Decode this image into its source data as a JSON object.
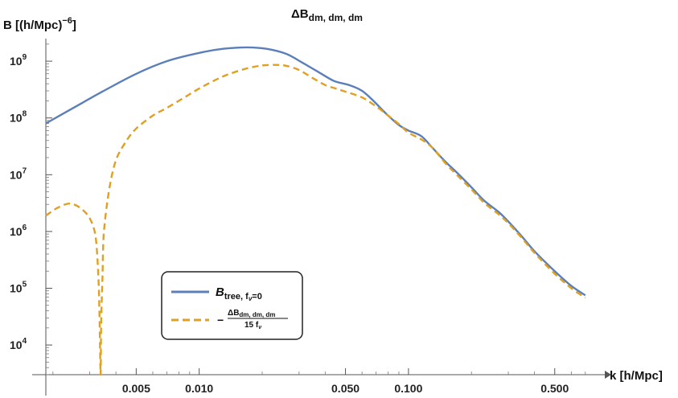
{
  "chart_data": {
    "type": "line",
    "title": "ΔB",
    "title_subscript": "dm, dm, dm",
    "ylabel": "B [(h/Mpc)",
    "ylabel_exponent": "−6",
    "ylabel_suffix": "]",
    "xlabel": "k [h/Mpc]",
    "x_scale": "log",
    "y_scale": "log",
    "xlim": [
      0.00185,
      0.78
    ],
    "ylim": [
      3000,
      2500000000
    ],
    "x_ticks": [
      {
        "value": 0.005,
        "label": "0.005"
      },
      {
        "value": 0.01,
        "label": "0.010"
      },
      {
        "value": 0.05,
        "label": "0.050"
      },
      {
        "value": 0.1,
        "label": "0.100"
      },
      {
        "value": 0.5,
        "label": "0.500"
      }
    ],
    "y_ticks": [
      {
        "value": 10000,
        "base": "10",
        "exp": "4"
      },
      {
        "value": 100000,
        "base": "10",
        "exp": "5"
      },
      {
        "value": 1000000,
        "base": "10",
        "exp": "6"
      },
      {
        "value": 10000000,
        "base": "10",
        "exp": "7"
      },
      {
        "value": 100000000,
        "base": "10",
        "exp": "8"
      },
      {
        "value": 1000000000,
        "base": "10",
        "exp": "9"
      }
    ],
    "grid": false,
    "legend_position": "lower-left",
    "series": [
      {
        "name": "B_tree, f_ν=0",
        "color": "#5b7fb8",
        "dash": "solid",
        "x": [
          0.00185,
          0.0025,
          0.0035,
          0.005,
          0.007,
          0.01,
          0.013,
          0.017,
          0.021,
          0.026,
          0.031,
          0.037,
          0.044,
          0.052,
          0.06,
          0.068,
          0.078,
          0.09,
          0.1,
          0.115,
          0.13,
          0.15,
          0.17,
          0.2,
          0.23,
          0.27,
          0.3,
          0.35,
          0.4,
          0.5,
          0.6,
          0.7
        ],
        "y": [
          80000000,
          150000000,
          300000000,
          600000000,
          1000000000,
          1400000000,
          1650000000,
          1750000000,
          1650000000,
          1350000000,
          950000000,
          650000000,
          450000000,
          380000000,
          300000000,
          200000000,
          120000000,
          75000000,
          60000000,
          48000000,
          30000000,
          17000000,
          11000000,
          6000000,
          3500000,
          2200000,
          1500000,
          800000,
          450000,
          200000,
          110000,
          75000
        ]
      },
      {
        "name": "−ΔB_dm,dm,dm / 15 f_ν",
        "color": "#e0a020",
        "dash": "dashed",
        "x": [
          0.00185,
          0.0021,
          0.0024,
          0.0027,
          0.003,
          0.0032,
          0.0033,
          0.00334,
          0.00338,
          0.0034,
          0.00345,
          0.0035,
          0.0037,
          0.004,
          0.0045,
          0.005,
          0.006,
          0.007,
          0.0085,
          0.01,
          0.012,
          0.014,
          0.017,
          0.02,
          0.023,
          0.026,
          0.03,
          0.035,
          0.04,
          0.045,
          0.05,
          0.06,
          0.07,
          0.08,
          0.09,
          0.1,
          0.115,
          0.13,
          0.15,
          0.17,
          0.2,
          0.23,
          0.27,
          0.3,
          0.35,
          0.4,
          0.5,
          0.6,
          0.7
        ],
        "y": [
          1900000,
          2600000,
          3100000,
          2600000,
          1700000,
          800000,
          150000,
          30000,
          3000,
          25000,
          150000,
          900000,
          5000000,
          18000000,
          40000000,
          65000000,
          110000000,
          150000000,
          230000000,
          330000000,
          470000000,
          600000000,
          750000000,
          840000000,
          860000000,
          830000000,
          700000000,
          500000000,
          380000000,
          330000000,
          290000000,
          230000000,
          160000000,
          110000000,
          78000000,
          55000000,
          42000000,
          30000000,
          16000000,
          10000000,
          5500000,
          3200000,
          2000000,
          1400000,
          750000,
          420000,
          180000,
          100000,
          68000
        ]
      }
    ]
  },
  "legend": {
    "entries": [
      {
        "main": "B",
        "sub": "tree, f",
        "subsub": "ν",
        "suffix": "=0"
      },
      {
        "prefix": "−",
        "num_main": "ΔB",
        "num_sub": "dm, dm, dm",
        "den": "15 f",
        "den_sub": "ν"
      }
    ]
  }
}
